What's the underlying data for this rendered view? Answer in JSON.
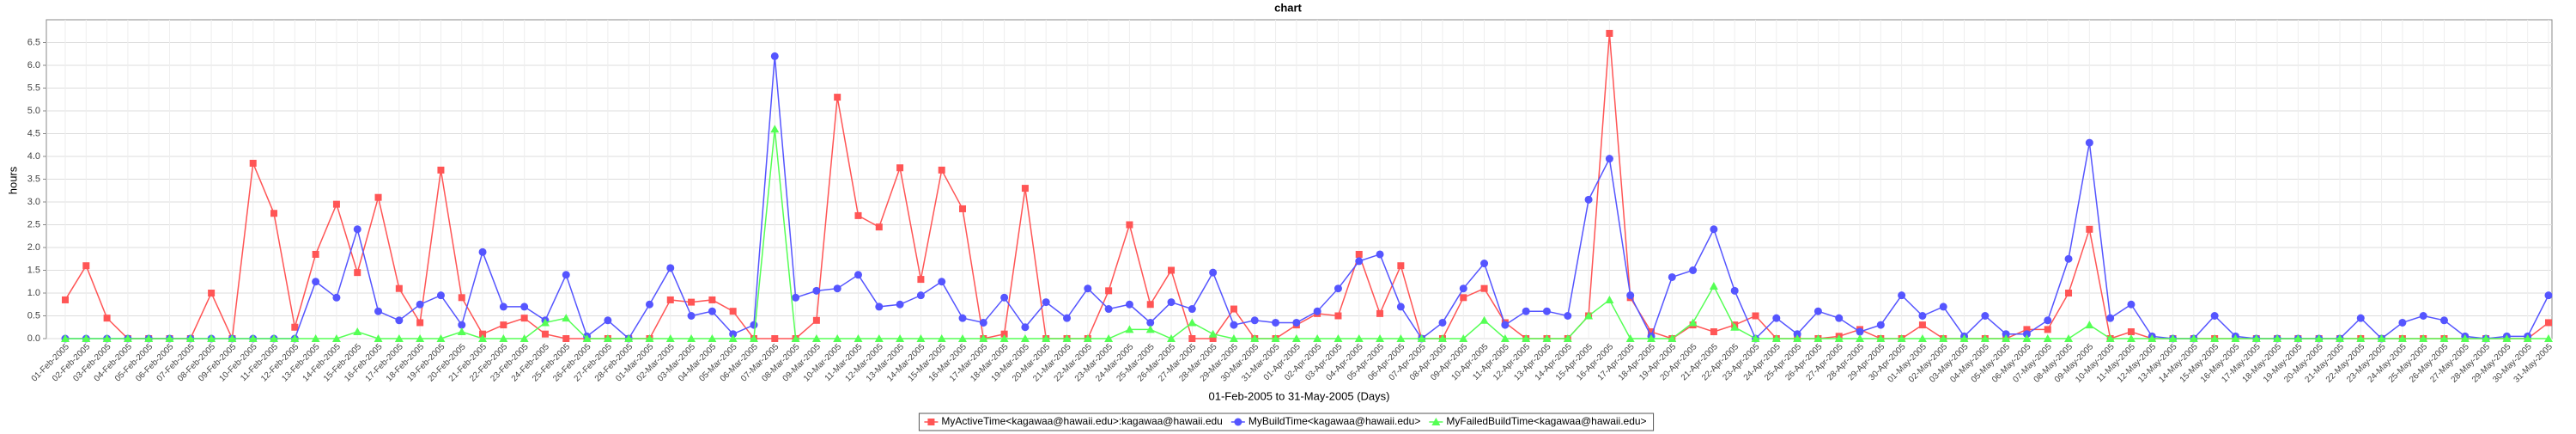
{
  "chart_data": {
    "type": "line",
    "title": "chart",
    "x_label": "01-Feb-2005 to 31-May-2005 (Days)",
    "y_label": "hours",
    "categories": [
      "01-Feb-2005",
      "02-Feb-2005",
      "03-Feb-2005",
      "04-Feb-2005",
      "05-Feb-2005",
      "06-Feb-2005",
      "07-Feb-2005",
      "08-Feb-2005",
      "09-Feb-2005",
      "10-Feb-2005",
      "11-Feb-2005",
      "12-Feb-2005",
      "13-Feb-2005",
      "14-Feb-2005",
      "15-Feb-2005",
      "16-Feb-2005",
      "17-Feb-2005",
      "18-Feb-2005",
      "19-Feb-2005",
      "20-Feb-2005",
      "21-Feb-2005",
      "22-Feb-2005",
      "23-Feb-2005",
      "24-Feb-2005",
      "25-Feb-2005",
      "26-Feb-2005",
      "27-Feb-2005",
      "28-Feb-2005",
      "01-Mar-2005",
      "02-Mar-2005",
      "03-Mar-2005",
      "04-Mar-2005",
      "05-Mar-2005",
      "06-Mar-2005",
      "07-Mar-2005",
      "08-Mar-2005",
      "09-Mar-2005",
      "10-Mar-2005",
      "11-Mar-2005",
      "12-Mar-2005",
      "13-Mar-2005",
      "14-Mar-2005",
      "15-Mar-2005",
      "16-Mar-2005",
      "17-Mar-2005",
      "18-Mar-2005",
      "19-Mar-2005",
      "20-Mar-2005",
      "21-Mar-2005",
      "22-Mar-2005",
      "23-Mar-2005",
      "24-Mar-2005",
      "25-Mar-2005",
      "26-Mar-2005",
      "27-Mar-2005",
      "28-Mar-2005",
      "29-Mar-2005",
      "30-Mar-2005",
      "31-Mar-2005",
      "01-Apr-2005",
      "02-Apr-2005",
      "03-Apr-2005",
      "04-Apr-2005",
      "05-Apr-2005",
      "06-Apr-2005",
      "07-Apr-2005",
      "08-Apr-2005",
      "09-Apr-2005",
      "10-Apr-2005",
      "11-Apr-2005",
      "12-Apr-2005",
      "13-Apr-2005",
      "14-Apr-2005",
      "15-Apr-2005",
      "16-Apr-2005",
      "17-Apr-2005",
      "18-Apr-2005",
      "19-Apr-2005",
      "20-Apr-2005",
      "21-Apr-2005",
      "22-Apr-2005",
      "23-Apr-2005",
      "24-Apr-2005",
      "25-Apr-2005",
      "26-Apr-2005",
      "27-Apr-2005",
      "28-Apr-2005",
      "29-Apr-2005",
      "30-Apr-2005",
      "01-May-2005",
      "02-May-2005",
      "03-May-2005",
      "04-May-2005",
      "05-May-2005",
      "06-May-2005",
      "07-May-2005",
      "08-May-2005",
      "09-May-2005",
      "10-May-2005",
      "11-May-2005",
      "12-May-2005",
      "13-May-2005",
      "14-May-2005",
      "15-May-2005",
      "16-May-2005",
      "17-May-2005",
      "18-May-2005",
      "19-May-2005",
      "20-May-2005",
      "21-May-2005",
      "22-May-2005",
      "23-May-2005",
      "24-May-2005",
      "25-May-2005",
      "26-May-2005",
      "27-May-2005",
      "28-May-2005",
      "29-May-2005",
      "30-May-2005",
      "31-May-2005"
    ],
    "series": [
      {
        "name": "MyActiveTime<kagawaa@hawaii.edu>:kagawaa@hawaii.edu",
        "color": "#ff5555",
        "marker": "square",
        "values": [
          0.85,
          1.6,
          0.45,
          0,
          0,
          0,
          0,
          1.0,
          0,
          3.85,
          2.75,
          0.25,
          1.85,
          2.95,
          1.45,
          3.1,
          1.1,
          0.35,
          3.7,
          0.9,
          0.1,
          0.3,
          0.45,
          0.1,
          0,
          0,
          0,
          0,
          0,
          0.85,
          0.8,
          0.85,
          0.6,
          0,
          0,
          0,
          0.4,
          5.3,
          2.7,
          2.45,
          3.75,
          1.3,
          3.7,
          2.85,
          0,
          0.1,
          3.3,
          0,
          0,
          0,
          1.05,
          2.5,
          0.75,
          1.5,
          0,
          0,
          0.65,
          0,
          0,
          0.3,
          0.55,
          0.5,
          1.85,
          0.55,
          1.6,
          0,
          0,
          0.9,
          1.1,
          0.35,
          0,
          0,
          0,
          0.5,
          6.7,
          0.9,
          0.15,
          0,
          0.3,
          0.15,
          0.3,
          0.5,
          0,
          0,
          0,
          0.05,
          0.2,
          0,
          0,
          0.3,
          0,
          0,
          0,
          0,
          0.2,
          0.2,
          1.0,
          2.4,
          0,
          0.15,
          0,
          0,
          0,
          0,
          0,
          0,
          0,
          0,
          0,
          0,
          0,
          0,
          0,
          0,
          0,
          0,
          0,
          0,
          0,
          0.35
        ]
      },
      {
        "name": "MyBuildTime<kagawaa@hawaii.edu>",
        "color": "#5555ff",
        "marker": "circle",
        "values": [
          0,
          0,
          0,
          0,
          0,
          0,
          0,
          0,
          0,
          0,
          0,
          0,
          1.25,
          0.9,
          2.4,
          0.6,
          0.4,
          0.75,
          0.95,
          0.3,
          1.9,
          0.7,
          0.7,
          0.4,
          1.4,
          0.05,
          0.4,
          0,
          0.75,
          1.55,
          0.5,
          0.6,
          0.1,
          0.3,
          6.2,
          0.9,
          1.05,
          1.1,
          1.4,
          0.7,
          0.75,
          0.95,
          1.25,
          0.45,
          0.35,
          0.9,
          0.25,
          0.8,
          0.45,
          1.1,
          0.65,
          0.75,
          0.35,
          0.8,
          0.65,
          1.45,
          0.3,
          0.4,
          0.35,
          0.35,
          0.6,
          1.1,
          1.7,
          1.85,
          0.7,
          0,
          0.35,
          1.1,
          1.65,
          0.3,
          0.6,
          0.6,
          0.5,
          3.05,
          3.95,
          0.95,
          0.05,
          1.35,
          1.5,
          2.4,
          1.05,
          0,
          0.45,
          0.1,
          0.6,
          0.45,
          0.15,
          0.3,
          0.95,
          0.5,
          0.7,
          0.05,
          0.5,
          0.1,
          0.1,
          0.4,
          1.75,
          4.3,
          0.45,
          0.75,
          0.05,
          0,
          0,
          0.5,
          0.05,
          0,
          0,
          0,
          0,
          0,
          0.45,
          0,
          0.35,
          0.5,
          0.4,
          0.05,
          0,
          0.05,
          0.05,
          0.95
        ]
      },
      {
        "name": "MyFailedBuildTime<kagawaa@hawaii.edu>",
        "color": "#55ff55",
        "marker": "triangle",
        "values": [
          0,
          0,
          0,
          0,
          0,
          0,
          0,
          0,
          0,
          0,
          0,
          0,
          0,
          0,
          0.15,
          0,
          0,
          0,
          0,
          0.15,
          0,
          0,
          0,
          0.35,
          0.45,
          0,
          0,
          0,
          0,
          0,
          0,
          0,
          0,
          0,
          4.6,
          0,
          0,
          0,
          0,
          0,
          0,
          0,
          0,
          0,
          0,
          0,
          0,
          0,
          0,
          0,
          0,
          0.2,
          0.2,
          0,
          0.35,
          0.1,
          0,
          0,
          0,
          0,
          0,
          0,
          0,
          0,
          0,
          0,
          0,
          0,
          0.4,
          0,
          0,
          0,
          0,
          0.5,
          0.85,
          0,
          0,
          0,
          0.35,
          1.15,
          0.25,
          0,
          0,
          0,
          0,
          0,
          0,
          0,
          0,
          0,
          0,
          0,
          0,
          0,
          0,
          0,
          0,
          0.3,
          0,
          0,
          0,
          0,
          0,
          0,
          0,
          0,
          0,
          0,
          0,
          0,
          0,
          0,
          0,
          0,
          0,
          0,
          0,
          0,
          0,
          0
        ]
      }
    ],
    "ylim": [
      0,
      7
    ],
    "yticks": [
      {
        "value": 0,
        "label": "0.0"
      },
      {
        "value": 0.5,
        "label": "0.5"
      },
      {
        "value": 1,
        "label": "1.0"
      },
      {
        "value": 1.5,
        "label": "1.5"
      },
      {
        "value": 2,
        "label": "2.0"
      },
      {
        "value": 2.5,
        "label": "2.5"
      },
      {
        "value": 3,
        "label": "3.0"
      },
      {
        "value": 3.5,
        "label": "3.5"
      },
      {
        "value": 4,
        "label": "4.0"
      },
      {
        "value": 4.5,
        "label": "4.5"
      },
      {
        "value": 5,
        "label": "5.0"
      },
      {
        "value": 5.5,
        "label": "5.5"
      },
      {
        "value": 6,
        "label": "6.0"
      },
      {
        "value": 6.5,
        "label": "6.5"
      }
    ],
    "grid": true,
    "legend": "bottom"
  }
}
